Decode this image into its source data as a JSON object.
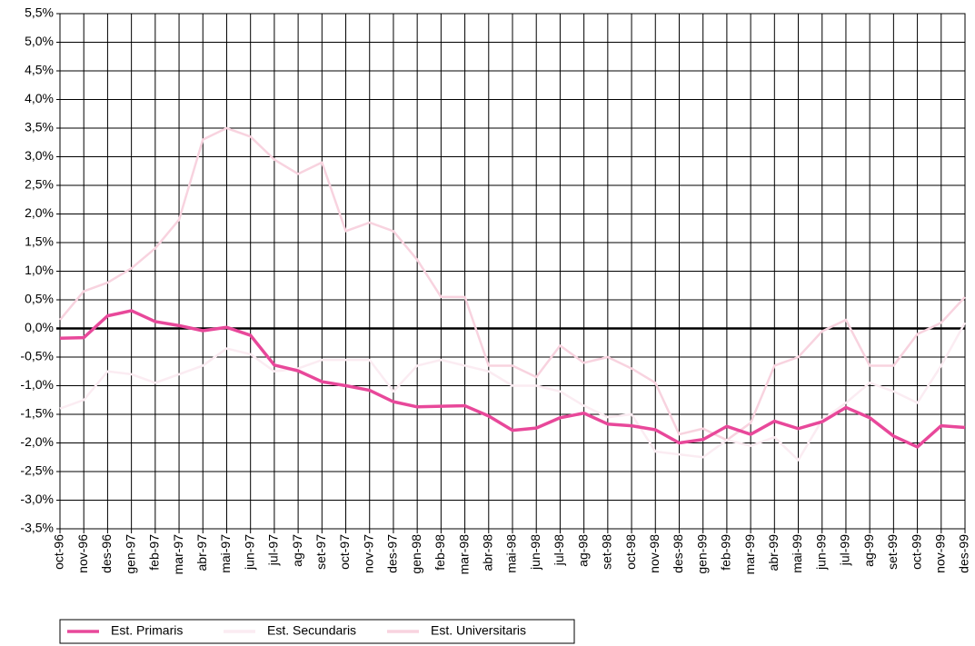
{
  "chart_data": {
    "type": "line",
    "categories": [
      "oct-96",
      "nov-96",
      "des-96",
      "gen-97",
      "feb-97",
      "mar-97",
      "abr-97",
      "mai-97",
      "jun-97",
      "jul-97",
      "ag-97",
      "set-97",
      "oct-97",
      "nov-97",
      "des-97",
      "gen-98",
      "feb-98",
      "mar-98",
      "abr-98",
      "mai-98",
      "jun-98",
      "jul-98",
      "ag-98",
      "set-98",
      "oct-98",
      "nov-98",
      "des-98",
      "gen-99",
      "feb-99",
      "mar-99",
      "abr-99",
      "mai-99",
      "jun-99",
      "jul-99",
      "ag-99",
      "set-99",
      "oct-99",
      "nov-99",
      "des-99"
    ],
    "series": [
      {
        "name": "Est. Primaris",
        "color": "#e8489a",
        "values": [
          -0.17,
          -0.16,
          0.22,
          0.31,
          0.12,
          0.05,
          -0.04,
          0.02,
          -0.12,
          -0.64,
          -0.74,
          -0.93,
          -1.0,
          -1.08,
          -1.28,
          -1.37,
          -1.36,
          -1.35,
          -1.53,
          -1.78,
          -1.74,
          -1.56,
          -1.48,
          -1.67,
          -1.7,
          -1.77,
          -2.0,
          -1.94,
          -1.71,
          -1.85,
          -1.62,
          -1.75,
          -1.63,
          -1.38,
          -1.56,
          -1.88,
          -2.07,
          -1.7,
          -1.73
        ]
      },
      {
        "name": "Est. Secundaris",
        "color": "#fbecf2",
        "values": [
          -1.4,
          -1.25,
          -0.75,
          -0.8,
          -0.95,
          -0.8,
          -0.65,
          -0.35,
          -0.45,
          -0.75,
          -0.7,
          -0.55,
          -0.55,
          -0.55,
          -1.1,
          -0.65,
          -0.55,
          -0.65,
          -0.75,
          -1.0,
          -1.0,
          -1.1,
          -1.35,
          -1.55,
          -1.5,
          -2.15,
          -2.2,
          -2.25,
          -1.95,
          -2.05,
          -1.9,
          -2.3,
          -1.6,
          -1.3,
          -0.95,
          -1.1,
          -1.3,
          -0.65,
          0.1
        ]
      },
      {
        "name": "Est. Universitaris",
        "color": "#f8d3df",
        "values": [
          0.15,
          0.65,
          0.8,
          1.05,
          1.4,
          1.9,
          3.3,
          3.5,
          3.35,
          2.95,
          2.7,
          2.9,
          1.7,
          1.85,
          1.7,
          1.2,
          0.55,
          0.55,
          -0.65,
          -0.65,
          -0.85,
          -0.3,
          -0.6,
          -0.5,
          -0.7,
          -0.95,
          -1.85,
          -1.75,
          -1.95,
          -1.65,
          -0.65,
          -0.5,
          -0.05,
          0.15,
          -0.65,
          -0.65,
          -0.1,
          0.1,
          0.55
        ]
      }
    ],
    "ylim": [
      -3.5,
      5.5
    ],
    "yticks": [
      {
        "value": -3.5,
        "label": "-3,5%"
      },
      {
        "value": -3.0,
        "label": "-3,0%"
      },
      {
        "value": -2.5,
        "label": "-2,5%"
      },
      {
        "value": -2.0,
        "label": "-2,0%"
      },
      {
        "value": -1.5,
        "label": "-1,5%"
      },
      {
        "value": -1.0,
        "label": "-1,0%"
      },
      {
        "value": -0.5,
        "label": "-0,5%"
      },
      {
        "value": 0,
        "label": "0,0%"
      },
      {
        "value": 0.5,
        "label": "0,5%"
      },
      {
        "value": 1.0,
        "label": "1,0%"
      },
      {
        "value": 1.5,
        "label": "1,5%"
      },
      {
        "value": 2.0,
        "label": "2,0%"
      },
      {
        "value": 2.5,
        "label": "2,5%"
      },
      {
        "value": 3.0,
        "label": "3,0%"
      },
      {
        "value": 3.5,
        "label": "3,5%"
      },
      {
        "value": 4.0,
        "label": "4,0%"
      },
      {
        "value": 4.5,
        "label": "4,5%"
      },
      {
        "value": 5.0,
        "label": "5,0%"
      },
      {
        "value": 5.5,
        "label": "5,5%"
      }
    ],
    "grid": true,
    "legend": "bottom-left"
  }
}
